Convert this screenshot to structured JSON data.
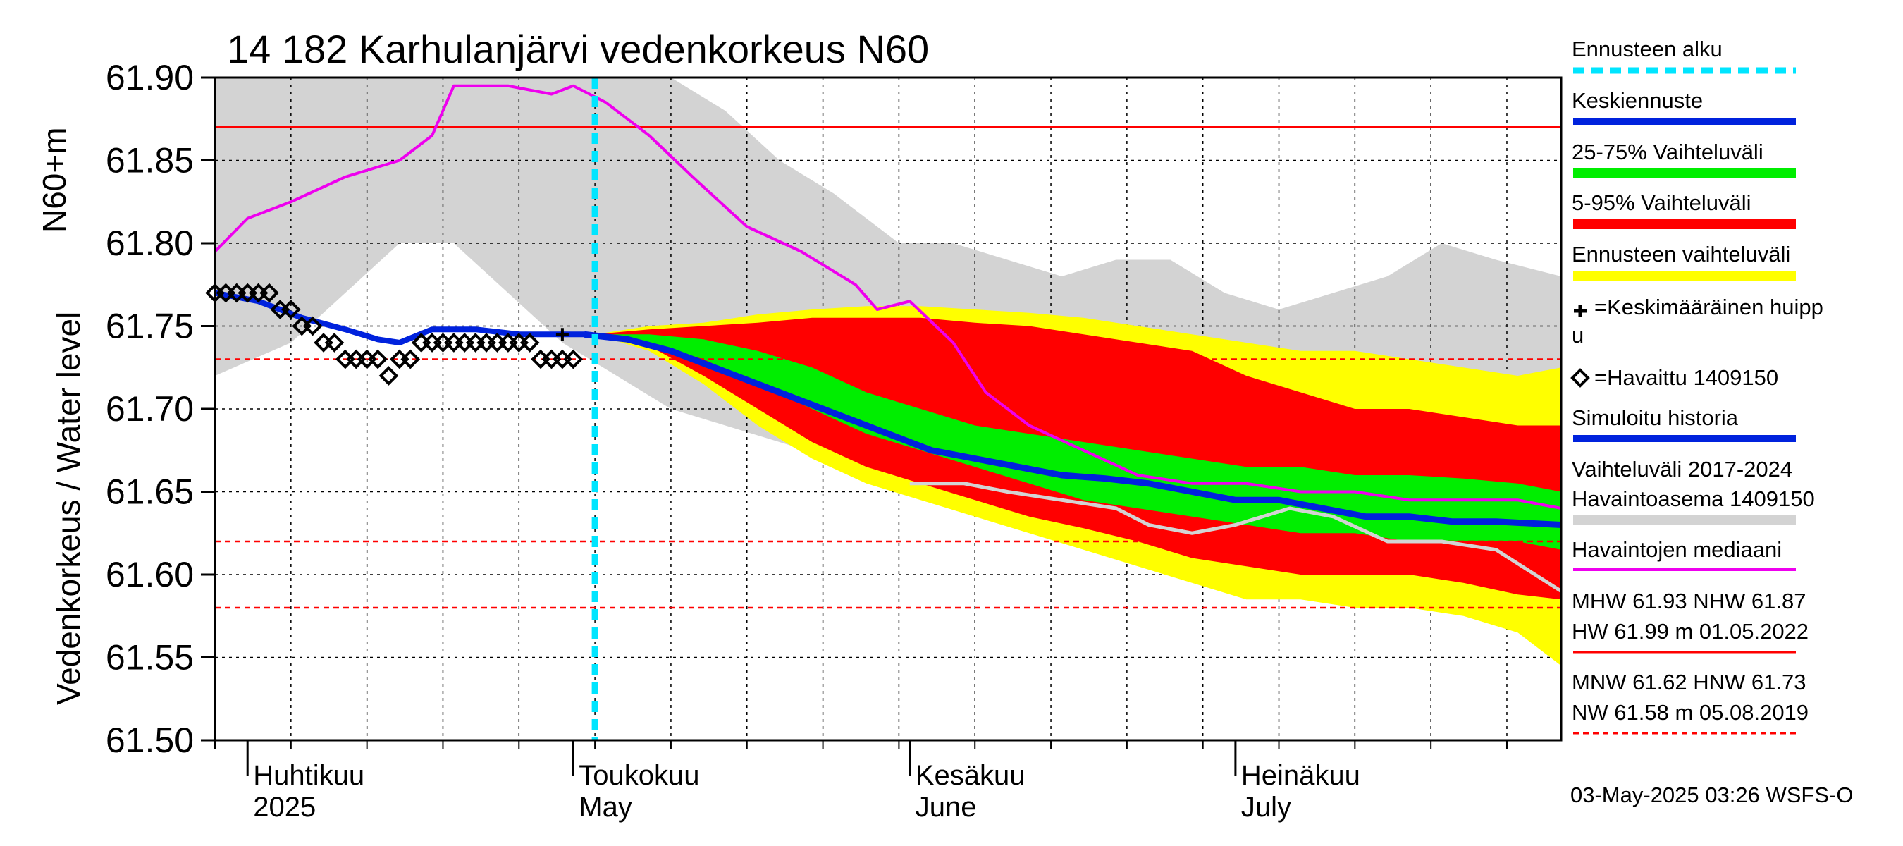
{
  "title": "14 182 Karhulanjärvi vedenkorkeus N60",
  "y_axis_label_main": "Vedenkorkeus / Water level",
  "y_axis_label_unit": "N60+m",
  "footer": "03-May-2025 03:26 WSFS-O",
  "legend": {
    "forecast_start": "Ennusteen alku",
    "mean_forecast": "Keskiennuste",
    "range_25_75": "25-75% Vaihteluväli",
    "range_5_95": "5-95% Vaihteluväli",
    "forecast_range": "Ennusteen vaihteluväli",
    "mean_peak_line1": "=Keskimääräinen huipp",
    "mean_peak_line2": "u",
    "observed": "=Havaittu 1409150",
    "simulated": "Simuloitu historia",
    "hist_range_line1": "Vaihteluväli 2017-2024",
    "hist_range_line2": " Havaintoasema 1409150",
    "median": "Havaintojen mediaani",
    "mhw_line": "MHW  61.93 NHW  61.87",
    "hw_line": "HW  61.99 m 01.05.2022",
    "mnw_line": "MNW  61.62 HNW  61.73",
    "nw_line": "NW  61.58 m 05.08.2019"
  },
  "colors": {
    "forecast_start": "#00e5ff",
    "mean_forecast": "#0022dd",
    "range_25_75": "#00ee00",
    "range_5_95": "#ff0000",
    "forecast_range": "#ffff00",
    "simulated": "#0022dd",
    "hist_range": "#d3d3d3",
    "median": "#ee00ee",
    "ref_line": "#ff0000"
  },
  "chart_data": {
    "type": "line",
    "x_unit": "date",
    "x_range": [
      "2025-03-29",
      "2025-07-31"
    ],
    "ylim": [
      61.5,
      61.9
    ],
    "yticks": [
      "61.50",
      "61.55",
      "61.60",
      "61.65",
      "61.70",
      "61.75",
      "61.80",
      "61.85",
      "61.90"
    ],
    "month_labels": [
      {
        "fi": "Huhtikuu",
        "en": "2025",
        "date": "2025-04-01"
      },
      {
        "fi": "Toukokuu",
        "en": "May",
        "date": "2025-05-01"
      },
      {
        "fi": "Kesäkuu",
        "en": "June",
        "date": "2025-06-01"
      },
      {
        "fi": "Heinäkuu",
        "en": "July",
        "date": "2025-07-01"
      }
    ],
    "forecast_start": "2025-05-03",
    "reference_lines": [
      {
        "name": "NHW",
        "value": 61.87,
        "style": "solid"
      },
      {
        "name": "HNW",
        "value": 61.73,
        "style": "dashed"
      },
      {
        "name": "MNW",
        "value": 61.62,
        "style": "dashed"
      },
      {
        "name": "NW",
        "value": 61.58,
        "style": "dashed"
      }
    ],
    "hist_range": {
      "x": [
        "2025-03-29",
        "2025-04-05",
        "2025-04-10",
        "2025-04-15",
        "2025-04-20",
        "2025-04-25",
        "2025-04-30",
        "2025-05-05",
        "2025-05-10",
        "2025-05-15",
        "2025-05-20",
        "2025-05-25",
        "2025-05-31",
        "2025-06-05",
        "2025-06-10",
        "2025-06-15",
        "2025-06-20",
        "2025-06-25",
        "2025-06-30",
        "2025-07-05",
        "2025-07-10",
        "2025-07-15",
        "2025-07-20",
        "2025-07-25",
        "2025-07-31"
      ],
      "low": [
        61.72,
        61.74,
        61.77,
        61.8,
        61.8,
        61.77,
        61.74,
        61.72,
        61.7,
        61.69,
        61.68,
        61.67,
        61.66,
        61.65,
        61.65,
        61.64,
        61.63,
        61.63,
        61.62,
        61.62,
        61.62,
        61.62,
        61.61,
        61.61,
        61.6
      ],
      "high": [
        61.9,
        61.9,
        61.9,
        61.9,
        61.9,
        61.9,
        61.9,
        61.9,
        61.9,
        61.88,
        61.85,
        61.83,
        61.8,
        61.8,
        61.79,
        61.78,
        61.79,
        61.79,
        61.77,
        61.76,
        61.77,
        61.78,
        61.8,
        61.79,
        61.78
      ]
    },
    "forecast_range": {
      "x": [
        "2025-05-03",
        "2025-05-08",
        "2025-05-13",
        "2025-05-18",
        "2025-05-23",
        "2025-05-28",
        "2025-06-02",
        "2025-06-07",
        "2025-06-12",
        "2025-06-17",
        "2025-06-22",
        "2025-06-27",
        "2025-07-02",
        "2025-07-07",
        "2025-07-12",
        "2025-07-17",
        "2025-07-22",
        "2025-07-27",
        "2025-07-31"
      ],
      "low": [
        61.745,
        61.735,
        61.715,
        61.69,
        61.67,
        61.655,
        61.645,
        61.635,
        61.625,
        61.615,
        61.605,
        61.595,
        61.585,
        61.585,
        61.58,
        61.58,
        61.575,
        61.565,
        61.545
      ],
      "high": [
        61.745,
        61.75,
        61.752,
        61.757,
        61.76,
        61.762,
        61.762,
        61.76,
        61.758,
        61.755,
        61.75,
        61.745,
        61.74,
        61.735,
        61.735,
        61.73,
        61.725,
        61.72,
        61.725
      ]
    },
    "range_5_95": {
      "x": [
        "2025-05-03",
        "2025-05-08",
        "2025-05-13",
        "2025-05-18",
        "2025-05-23",
        "2025-05-28",
        "2025-06-02",
        "2025-06-07",
        "2025-06-12",
        "2025-06-17",
        "2025-06-22",
        "2025-06-27",
        "2025-07-02",
        "2025-07-07",
        "2025-07-12",
        "2025-07-17",
        "2025-07-22",
        "2025-07-27",
        "2025-07-31"
      ],
      "low": [
        61.745,
        61.738,
        61.72,
        61.7,
        61.68,
        61.665,
        61.655,
        61.645,
        61.635,
        61.628,
        61.62,
        61.61,
        61.605,
        61.6,
        61.6,
        61.6,
        61.595,
        61.588,
        61.585
      ],
      "high": [
        61.745,
        61.748,
        61.75,
        61.752,
        61.755,
        61.755,
        61.755,
        61.752,
        61.75,
        61.745,
        61.74,
        61.735,
        61.72,
        61.71,
        61.7,
        61.7,
        61.695,
        61.69,
        61.69
      ]
    },
    "range_25_75": {
      "x": [
        "2025-05-03",
        "2025-05-08",
        "2025-05-13",
        "2025-05-18",
        "2025-05-23",
        "2025-05-28",
        "2025-06-02",
        "2025-06-07",
        "2025-06-12",
        "2025-06-17",
        "2025-06-22",
        "2025-06-27",
        "2025-07-02",
        "2025-07-07",
        "2025-07-12",
        "2025-07-17",
        "2025-07-22",
        "2025-07-27",
        "2025-07-31"
      ],
      "low": [
        61.745,
        61.74,
        61.73,
        61.715,
        61.7,
        61.685,
        61.675,
        61.665,
        61.655,
        61.645,
        61.64,
        61.635,
        61.63,
        61.625,
        61.625,
        61.62,
        61.62,
        61.62,
        61.615
      ],
      "high": [
        61.745,
        61.745,
        61.742,
        61.735,
        61.725,
        61.71,
        61.7,
        61.69,
        61.685,
        61.68,
        61.675,
        61.67,
        61.665,
        61.665,
        61.66,
        61.66,
        61.658,
        61.655,
        61.65
      ]
    },
    "series": [
      {
        "name": "Havaintojen mediaani",
        "x": [
          "2025-03-29",
          "2025-04-01",
          "2025-04-05",
          "2025-04-10",
          "2025-04-15",
          "2025-04-18",
          "2025-04-20",
          "2025-04-25",
          "2025-04-29",
          "2025-05-01",
          "2025-05-04",
          "2025-05-08",
          "2025-05-12",
          "2025-05-17",
          "2025-05-22",
          "2025-05-27",
          "2025-05-29",
          "2025-06-01",
          "2025-06-05",
          "2025-06-08",
          "2025-06-12",
          "2025-06-17",
          "2025-06-22",
          "2025-06-27",
          "2025-07-02",
          "2025-07-07",
          "2025-07-12",
          "2025-07-17",
          "2025-07-22",
          "2025-07-27",
          "2025-07-31"
        ],
        "y": [
          61.795,
          61.815,
          61.825,
          61.84,
          61.85,
          61.865,
          61.895,
          61.895,
          61.89,
          61.895,
          61.885,
          61.865,
          61.84,
          61.81,
          61.795,
          61.775,
          61.76,
          61.765,
          61.74,
          61.71,
          61.69,
          61.675,
          61.66,
          61.655,
          61.655,
          61.65,
          61.65,
          61.645,
          61.645,
          61.645,
          61.64
        ]
      },
      {
        "name": "Simuloitu historia",
        "x": [
          "2025-03-29",
          "2025-04-02",
          "2025-04-06",
          "2025-04-10",
          "2025-04-13",
          "2025-04-15",
          "2025-04-18",
          "2025-04-22",
          "2025-04-26",
          "2025-04-30",
          "2025-05-02"
        ],
        "y": [
          61.77,
          61.765,
          61.755,
          61.748,
          61.742,
          61.74,
          61.748,
          61.748,
          61.745,
          61.745,
          61.745
        ]
      },
      {
        "name": "Keskiennuste",
        "x": [
          "2025-05-02",
          "2025-05-06",
          "2025-05-10",
          "2025-05-14",
          "2025-05-18",
          "2025-05-22",
          "2025-05-26",
          "2025-05-30",
          "2025-06-03",
          "2025-06-07",
          "2025-06-11",
          "2025-06-15",
          "2025-06-19",
          "2025-06-23",
          "2025-06-27",
          "2025-07-01",
          "2025-07-05",
          "2025-07-09",
          "2025-07-13",
          "2025-07-17",
          "2025-07-21",
          "2025-07-25",
          "2025-07-31"
        ],
        "y": [
          61.745,
          61.742,
          61.735,
          61.725,
          61.715,
          61.705,
          61.695,
          61.685,
          61.675,
          61.67,
          61.665,
          61.66,
          61.658,
          61.655,
          61.65,
          61.645,
          61.645,
          61.64,
          61.635,
          61.635,
          61.632,
          61.632,
          61.63
        ]
      },
      {
        "name": "Vaihteluväli 2017-2024 Havaintoasema 1409150 (min)",
        "x": [
          "2025-06-01",
          "2025-06-06",
          "2025-06-10",
          "2025-06-15",
          "2025-06-20",
          "2025-06-23",
          "2025-06-27",
          "2025-07-01",
          "2025-07-06",
          "2025-07-10",
          "2025-07-15",
          "2025-07-20",
          "2025-07-25",
          "2025-07-31"
        ],
        "y": [
          61.655,
          61.655,
          61.65,
          61.645,
          61.64,
          61.63,
          61.625,
          61.63,
          61.64,
          61.635,
          61.62,
          61.62,
          61.615,
          61.59
        ]
      }
    ],
    "observed": {
      "name": "=Havaittu 1409150",
      "x": [
        "2025-03-29",
        "2025-03-30",
        "2025-03-31",
        "2025-04-01",
        "2025-04-02",
        "2025-04-03",
        "2025-04-04",
        "2025-04-05",
        "2025-04-06",
        "2025-04-07",
        "2025-04-08",
        "2025-04-09",
        "2025-04-10",
        "2025-04-11",
        "2025-04-12",
        "2025-04-13",
        "2025-04-14",
        "2025-04-15",
        "2025-04-16",
        "2025-04-17",
        "2025-04-18",
        "2025-04-19",
        "2025-04-20",
        "2025-04-21",
        "2025-04-22",
        "2025-04-23",
        "2025-04-24",
        "2025-04-25",
        "2025-04-26",
        "2025-04-27",
        "2025-04-28",
        "2025-04-29",
        "2025-04-30",
        "2025-05-01"
      ],
      "y": [
        61.77,
        61.77,
        61.77,
        61.77,
        61.77,
        61.77,
        61.76,
        61.76,
        61.75,
        61.75,
        61.74,
        61.74,
        61.73,
        61.73,
        61.73,
        61.73,
        61.72,
        61.73,
        61.73,
        61.74,
        61.74,
        61.74,
        61.74,
        61.74,
        61.74,
        61.74,
        61.74,
        61.74,
        61.74,
        61.74,
        61.73,
        61.73,
        61.73,
        61.73
      ]
    },
    "mean_peak": {
      "x": "2025-04-30",
      "y": 61.745
    }
  }
}
